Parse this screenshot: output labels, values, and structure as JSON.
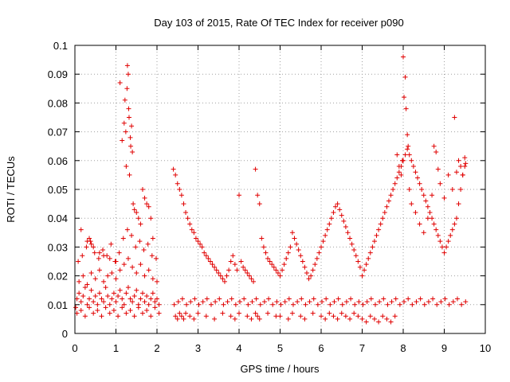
{
  "chart_data": {
    "type": "scatter",
    "title": "Day 103 of 2015, Rate Of TEC Index for receiver p090",
    "xlabel": "GPS time / hours",
    "ylabel": "ROTI / TECUs",
    "xlim": [
      0,
      10
    ],
    "ylim": [
      0,
      0.1
    ],
    "grid": true,
    "marker": "+",
    "marker_color": "#e00000",
    "x_ticks": [
      0,
      1,
      2,
      3,
      4,
      5,
      6,
      7,
      8,
      9,
      10
    ],
    "x_tick_labels": [
      "0",
      "1",
      "2",
      "3",
      "4",
      "5",
      "6",
      "7",
      "8",
      "9",
      "10"
    ],
    "y_ticks": [
      0,
      0.01,
      0.02,
      0.03,
      0.04,
      0.05,
      0.06,
      0.07,
      0.08,
      0.09,
      0.1
    ],
    "y_tick_labels": [
      "0",
      "0.01",
      "0.02",
      "0.03",
      "0.04",
      "0.05",
      "0.06",
      "0.07",
      "0.08",
      "0.09",
      "0.1"
    ],
    "series": [
      {
        "name": "ROTI",
        "x": [
          0.02,
          0.05,
          0.1,
          0.15,
          0.2,
          0.25,
          0.3,
          0.35,
          0.4,
          0.45,
          0.5,
          0.55,
          0.6,
          0.65,
          0.7,
          0.75,
          0.8,
          0.85,
          0.9,
          0.95,
          1.0,
          1.05,
          1.1,
          1.15,
          1.2,
          1.25,
          1.3,
          1.35,
          1.4,
          1.45,
          1.5,
          1.55,
          1.6,
          1.65,
          1.7,
          1.75,
          1.8,
          1.85,
          1.9,
          1.95,
          2.0,
          2.05,
          0.05,
          0.15,
          0.25,
          0.35,
          0.45,
          0.55,
          0.65,
          0.75,
          0.85,
          0.95,
          1.05,
          1.15,
          1.25,
          1.35,
          1.45,
          1.55,
          1.65,
          1.75,
          1.85,
          1.95,
          2.05,
          0.1,
          0.2,
          0.3,
          0.4,
          0.5,
          0.6,
          0.7,
          0.8,
          0.9,
          1.0,
          1.1,
          1.2,
          1.3,
          1.4,
          1.5,
          1.6,
          1.7,
          1.8,
          1.9,
          2.0,
          0.08,
          0.18,
          0.28,
          0.38,
          0.48,
          0.58,
          0.68,
          0.78,
          0.88,
          0.98,
          1.08,
          1.18,
          1.28,
          1.38,
          1.48,
          1.58,
          1.68,
          1.78,
          1.88,
          1.98,
          0.15,
          0.3,
          0.35,
          0.4,
          0.45,
          0.6,
          0.7,
          0.85,
          1.0,
          1.1,
          1.15,
          1.2,
          1.22,
          1.24,
          1.25,
          1.27,
          1.28,
          1.3,
          1.31,
          1.32,
          1.33,
          1.35,
          1.36,
          1.38,
          1.4,
          1.42,
          1.45,
          1.5,
          1.55,
          1.6,
          1.65,
          1.7,
          1.75,
          1.8,
          1.85,
          1.9,
          2.4,
          2.45,
          2.5,
          2.55,
          2.6,
          2.65,
          2.7,
          2.75,
          2.8,
          2.85,
          2.9,
          2.95,
          3.0,
          3.05,
          3.1,
          3.15,
          3.2,
          3.25,
          3.3,
          3.35,
          3.4,
          3.45,
          3.5,
          3.55,
          3.6,
          3.65,
          3.7,
          3.75,
          3.8,
          3.85,
          3.9,
          3.95,
          4.0,
          4.05,
          4.1,
          4.15,
          4.2,
          4.25,
          4.3,
          4.35,
          4.4,
          4.45,
          4.5,
          4.55,
          4.6,
          4.65,
          4.7,
          4.75,
          4.8,
          4.85,
          4.9,
          4.95,
          2.42,
          2.52,
          2.62,
          2.72,
          2.82,
          2.92,
          3.02,
          3.12,
          3.22,
          3.32,
          3.42,
          3.52,
          3.62,
          3.72,
          3.82,
          3.92,
          4.02,
          4.12,
          4.22,
          4.32,
          4.42,
          4.52,
          4.62,
          4.72,
          4.82,
          4.92,
          2.45,
          2.5,
          2.55,
          2.6,
          2.65,
          2.7,
          2.8,
          2.9,
          3.0,
          3.2,
          3.4,
          3.6,
          3.8,
          3.9,
          4.0,
          4.2,
          4.3,
          4.4,
          4.45,
          4.5,
          4.7,
          4.9,
          5.0,
          5.05,
          5.1,
          5.15,
          5.2,
          5.25,
          5.3,
          5.35,
          5.4,
          5.45,
          5.5,
          5.55,
          5.6,
          5.65,
          5.7,
          5.75,
          5.8,
          5.85,
          5.9,
          5.95,
          6.0,
          6.05,
          6.1,
          6.15,
          6.2,
          6.25,
          6.3,
          6.35,
          6.4,
          6.45,
          6.5,
          6.55,
          6.6,
          6.65,
          6.7,
          6.75,
          6.8,
          6.85,
          6.9,
          6.95,
          5.02,
          5.12,
          5.22,
          5.32,
          5.42,
          5.52,
          5.62,
          5.72,
          5.82,
          5.92,
          6.02,
          6.12,
          6.22,
          6.32,
          6.42,
          6.52,
          6.62,
          6.72,
          6.82,
          6.92,
          5.0,
          5.2,
          5.3,
          5.5,
          5.6,
          5.8,
          6.0,
          6.1,
          6.2,
          6.3,
          6.4,
          6.5,
          6.6,
          6.7,
          6.8,
          6.9,
          7.0,
          7.05,
          7.1,
          7.15,
          7.2,
          7.25,
          7.3,
          7.35,
          7.4,
          7.45,
          7.5,
          7.55,
          7.6,
          7.65,
          7.7,
          7.75,
          7.8,
          7.85,
          7.9,
          7.95,
          8.0,
          8.05,
          8.1,
          8.15,
          8.2,
          8.25,
          8.3,
          8.35,
          8.4,
          8.45,
          8.5,
          8.55,
          8.6,
          8.65,
          8.7,
          8.75,
          8.8,
          8.85,
          8.9,
          8.95,
          9.0,
          9.05,
          9.1,
          9.15,
          9.2,
          9.25,
          9.3,
          9.35,
          9.4,
          9.45,
          9.5,
          7.02,
          7.12,
          7.22,
          7.32,
          7.42,
          7.52,
          7.62,
          7.72,
          7.82,
          7.92,
          8.02,
          8.12,
          8.22,
          8.32,
          8.42,
          8.52,
          8.62,
          8.72,
          8.82,
          8.92,
          9.02,
          9.12,
          9.22,
          9.32,
          9.42,
          9.52,
          7.0,
          7.1,
          7.2,
          7.3,
          7.4,
          7.5,
          7.6,
          7.7,
          7.8,
          7.85,
          7.9,
          7.95,
          7.98,
          8.0,
          8.02,
          8.05,
          8.07,
          8.1,
          8.12,
          8.15,
          8.2,
          8.3,
          8.4,
          8.5,
          8.6,
          8.7,
          8.75,
          8.8,
          8.85,
          8.9,
          9.0,
          9.1,
          9.2,
          9.25,
          9.3,
          9.35,
          9.4,
          9.45,
          9.5,
          9.52
        ],
        "y": [
          0.009,
          0.012,
          0.014,
          0.011,
          0.013,
          0.016,
          0.01,
          0.012,
          0.015,
          0.011,
          0.013,
          0.01,
          0.014,
          0.012,
          0.011,
          0.016,
          0.013,
          0.01,
          0.012,
          0.014,
          0.011,
          0.013,
          0.015,
          0.012,
          0.01,
          0.014,
          0.016,
          0.012,
          0.011,
          0.013,
          0.015,
          0.01,
          0.012,
          0.014,
          0.011,
          0.013,
          0.01,
          0.012,
          0.014,
          0.011,
          0.012,
          0.01,
          0.007,
          0.008,
          0.006,
          0.009,
          0.007,
          0.008,
          0.006,
          0.009,
          0.007,
          0.008,
          0.006,
          0.009,
          0.007,
          0.008,
          0.006,
          0.009,
          0.007,
          0.008,
          0.006,
          0.009,
          0.007,
          0.018,
          0.02,
          0.017,
          0.021,
          0.019,
          0.022,
          0.018,
          0.02,
          0.021,
          0.019,
          0.022,
          0.024,
          0.026,
          0.023,
          0.021,
          0.024,
          0.02,
          0.022,
          0.019,
          0.018,
          0.025,
          0.027,
          0.03,
          0.032,
          0.028,
          0.026,
          0.029,
          0.027,
          0.031,
          0.025,
          0.028,
          0.033,
          0.036,
          0.034,
          0.03,
          0.032,
          0.029,
          0.031,
          0.027,
          0.026,
          0.036,
          0.032,
          0.033,
          0.031,
          0.03,
          0.028,
          0.027,
          0.026,
          0.025,
          0.087,
          0.067,
          0.073,
          0.081,
          0.07,
          0.058,
          0.085,
          0.093,
          0.09,
          0.078,
          0.075,
          0.055,
          0.068,
          0.065,
          0.072,
          0.063,
          0.045,
          0.043,
          0.042,
          0.04,
          0.038,
          0.05,
          0.047,
          0.045,
          0.044,
          0.04,
          0.033,
          0.057,
          0.055,
          0.052,
          0.05,
          0.048,
          0.045,
          0.042,
          0.04,
          0.038,
          0.036,
          0.035,
          0.033,
          0.032,
          0.031,
          0.03,
          0.028,
          0.027,
          0.026,
          0.025,
          0.024,
          0.023,
          0.022,
          0.021,
          0.02,
          0.019,
          0.018,
          0.02,
          0.022,
          0.025,
          0.027,
          0.024,
          0.022,
          0.048,
          0.025,
          0.023,
          0.022,
          0.021,
          0.02,
          0.019,
          0.018,
          0.057,
          0.048,
          0.045,
          0.033,
          0.03,
          0.028,
          0.026,
          0.025,
          0.024,
          0.023,
          0.022,
          0.021,
          0.01,
          0.011,
          0.012,
          0.01,
          0.011,
          0.012,
          0.01,
          0.011,
          0.012,
          0.01,
          0.011,
          0.012,
          0.01,
          0.011,
          0.012,
          0.01,
          0.011,
          0.012,
          0.01,
          0.011,
          0.012,
          0.01,
          0.011,
          0.012,
          0.01,
          0.011,
          0.006,
          0.005,
          0.007,
          0.006,
          0.005,
          0.007,
          0.006,
          0.005,
          0.007,
          0.006,
          0.005,
          0.007,
          0.006,
          0.005,
          0.007,
          0.006,
          0.005,
          0.007,
          0.006,
          0.005,
          0.007,
          0.006,
          0.02,
          0.022,
          0.024,
          0.026,
          0.028,
          0.03,
          0.035,
          0.033,
          0.031,
          0.029,
          0.027,
          0.025,
          0.023,
          0.021,
          0.019,
          0.02,
          0.022,
          0.024,
          0.026,
          0.028,
          0.03,
          0.032,
          0.034,
          0.036,
          0.038,
          0.04,
          0.042,
          0.044,
          0.045,
          0.043,
          0.041,
          0.039,
          0.037,
          0.035,
          0.033,
          0.031,
          0.029,
          0.027,
          0.025,
          0.023,
          0.01,
          0.011,
          0.012,
          0.01,
          0.011,
          0.012,
          0.01,
          0.011,
          0.012,
          0.01,
          0.011,
          0.012,
          0.01,
          0.011,
          0.012,
          0.01,
          0.011,
          0.012,
          0.01,
          0.011,
          0.006,
          0.005,
          0.007,
          0.006,
          0.005,
          0.007,
          0.006,
          0.005,
          0.007,
          0.006,
          0.005,
          0.007,
          0.006,
          0.005,
          0.007,
          0.006,
          0.02,
          0.022,
          0.024,
          0.026,
          0.028,
          0.03,
          0.032,
          0.034,
          0.036,
          0.038,
          0.04,
          0.042,
          0.044,
          0.046,
          0.048,
          0.05,
          0.052,
          0.054,
          0.056,
          0.058,
          0.06,
          0.062,
          0.064,
          0.062,
          0.06,
          0.058,
          0.056,
          0.054,
          0.052,
          0.05,
          0.048,
          0.046,
          0.044,
          0.042,
          0.04,
          0.038,
          0.036,
          0.034,
          0.032,
          0.03,
          0.028,
          0.03,
          0.032,
          0.034,
          0.036,
          0.038,
          0.04,
          0.045,
          0.05,
          0.055,
          0.058,
          0.01,
          0.011,
          0.012,
          0.01,
          0.011,
          0.012,
          0.01,
          0.011,
          0.012,
          0.01,
          0.011,
          0.012,
          0.01,
          0.011,
          0.012,
          0.01,
          0.011,
          0.012,
          0.01,
          0.011,
          0.012,
          0.01,
          0.011,
          0.012,
          0.01,
          0.011,
          0.005,
          0.004,
          0.006,
          0.005,
          0.004,
          0.006,
          0.005,
          0.004,
          0.006,
          0.062,
          0.058,
          0.055,
          0.06,
          0.096,
          0.082,
          0.089,
          0.078,
          0.069,
          0.065,
          0.05,
          0.045,
          0.042,
          0.038,
          0.035,
          0.04,
          0.048,
          0.065,
          0.063,
          0.057,
          0.052,
          0.047,
          0.055,
          0.05,
          0.075,
          0.056,
          0.06,
          0.058,
          0.055,
          0.061,
          0.059
        ]
      }
    ]
  }
}
